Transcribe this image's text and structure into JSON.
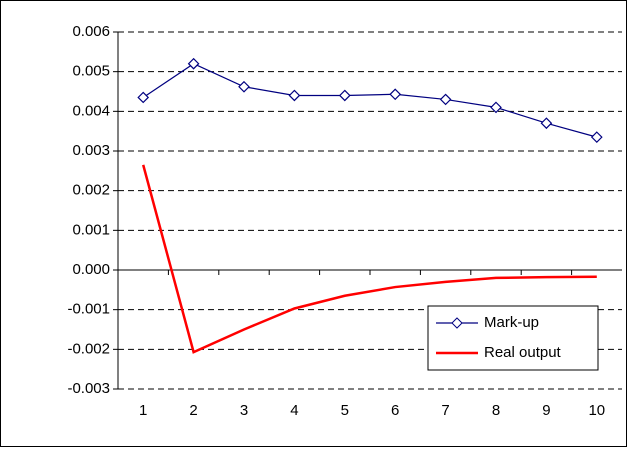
{
  "chart_data": {
    "type": "line",
    "categories": [
      "1",
      "2",
      "3",
      "4",
      "5",
      "6",
      "7",
      "8",
      "9",
      "10"
    ],
    "series": [
      {
        "name": "Mark-up",
        "color": "#000080",
        "marker": "diamond",
        "values": [
          0.00435,
          0.0052,
          0.00462,
          0.0044,
          0.0044,
          0.00443,
          0.0043,
          0.0041,
          0.0037,
          0.00335
        ]
      },
      {
        "name": "Real output",
        "color": "#ff0000",
        "values": [
          0.00265,
          -0.00207,
          -0.0015,
          -0.00097,
          -0.00065,
          -0.00043,
          -0.0003,
          -0.0002,
          -0.00018,
          -0.00017
        ]
      }
    ],
    "ylim": [
      -0.003,
      0.006
    ],
    "yticks": [
      -0.003,
      -0.002,
      -0.001,
      {
        "value": 0,
        "label": "0.000"
      },
      0.001,
      0.002,
      0.003,
      0.004,
      0.005,
      0.006
    ],
    "grid": true,
    "legend": "lower right"
  }
}
